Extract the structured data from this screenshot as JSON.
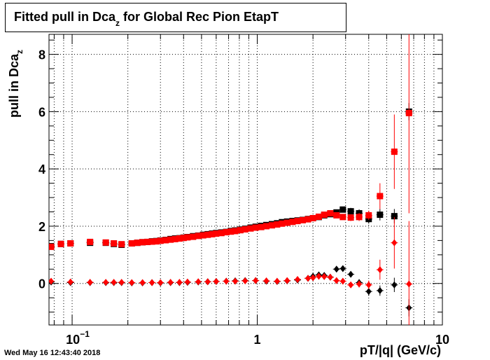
{
  "title": {
    "main": "Fitted pull in Dca",
    "sub": "z",
    "rest": " for Global Rec Pion EtapT"
  },
  "ylabel": {
    "main": "pull in Dca",
    "sub": "z"
  },
  "xlabel": "pT/|q| (GeV/c)",
  "timestamp": "Wed May 16 12:43:40 2018",
  "chart_data": {
    "type": "scatter",
    "xscale": "log",
    "xlim": [
      0.075,
      10
    ],
    "ylim": [
      -1.45,
      8.7
    ],
    "grid": true,
    "x_tick_labels": [
      {
        "value": 0.1,
        "base": "10",
        "exp": "−1"
      },
      {
        "value": 1,
        "base": "1",
        "exp": ""
      },
      {
        "value": 10,
        "base": "10",
        "exp": ""
      }
    ],
    "y_ticks": [
      0,
      2,
      4,
      6,
      8
    ],
    "series": [
      {
        "marker": "square",
        "color": "#000000",
        "points": [
          [
            0.077,
            1.3
          ],
          [
            0.087,
            1.38
          ],
          [
            0.098,
            1.4
          ],
          [
            0.125,
            1.42
          ],
          [
            0.152,
            1.42
          ],
          [
            0.168,
            1.38
          ],
          [
            0.185,
            1.35
          ],
          [
            0.21,
            1.4
          ],
          [
            0.225,
            1.42
          ],
          [
            0.24,
            1.44
          ],
          [
            0.255,
            1.45
          ],
          [
            0.27,
            1.47
          ],
          [
            0.285,
            1.48
          ],
          [
            0.3,
            1.5
          ],
          [
            0.32,
            1.52
          ],
          [
            0.34,
            1.55
          ],
          [
            0.36,
            1.57
          ],
          [
            0.38,
            1.58
          ],
          [
            0.4,
            1.6
          ],
          [
            0.42,
            1.62
          ],
          [
            0.45,
            1.65
          ],
          [
            0.48,
            1.67
          ],
          [
            0.51,
            1.7
          ],
          [
            0.54,
            1.72
          ],
          [
            0.57,
            1.74
          ],
          [
            0.6,
            1.76
          ],
          [
            0.64,
            1.78
          ],
          [
            0.68,
            1.8
          ],
          [
            0.72,
            1.83
          ],
          [
            0.76,
            1.85
          ],
          [
            0.81,
            1.88
          ],
          [
            0.86,
            1.91
          ],
          [
            0.92,
            1.95
          ],
          [
            0.98,
            1.98
          ],
          [
            1.05,
            2.01
          ],
          [
            1.12,
            2.04
          ],
          [
            1.2,
            2.07
          ],
          [
            1.28,
            2.1
          ],
          [
            1.36,
            2.14
          ],
          [
            1.45,
            2.16
          ],
          [
            1.55,
            2.18
          ],
          [
            1.65,
            2.2
          ],
          [
            1.76,
            2.22
          ],
          [
            1.88,
            2.25
          ],
          [
            2.0,
            2.28
          ],
          [
            2.15,
            2.32
          ],
          [
            2.3,
            2.38
          ],
          [
            2.48,
            2.42
          ],
          [
            2.68,
            2.48
          ],
          [
            2.9,
            2.58
          ],
          [
            3.2,
            2.52
          ],
          [
            3.55,
            2.45
          ],
          [
            4.0,
            2.25
          ],
          [
            4.6,
            2.4
          ],
          [
            5.5,
            2.35
          ],
          [
            6.6,
            6.0
          ]
        ],
        "yerr": [
          0.05,
          0.04,
          0.04,
          0.04,
          0.04,
          0.04,
          0.04,
          0.03,
          0.03,
          0.03,
          0.03,
          0.03,
          0.03,
          0.03,
          0.03,
          0.03,
          0.03,
          0.03,
          0.03,
          0.03,
          0.03,
          0.03,
          0.03,
          0.03,
          0.03,
          0.03,
          0.03,
          0.03,
          0.03,
          0.03,
          0.03,
          0.03,
          0.03,
          0.03,
          0.03,
          0.03,
          0.03,
          0.03,
          0.03,
          0.03,
          0.03,
          0.03,
          0.03,
          0.03,
          0.04,
          0.05,
          0.06,
          0.07,
          0.08,
          0.1,
          0.12,
          0.14,
          0.16,
          0.2,
          0.25,
          0.3
        ]
      },
      {
        "marker": "square",
        "color": "#ff0000",
        "points": [
          [
            0.077,
            1.28
          ],
          [
            0.087,
            1.38
          ],
          [
            0.098,
            1.4
          ],
          [
            0.125,
            1.45
          ],
          [
            0.152,
            1.43
          ],
          [
            0.168,
            1.4
          ],
          [
            0.185,
            1.37
          ],
          [
            0.21,
            1.4
          ],
          [
            0.225,
            1.42
          ],
          [
            0.24,
            1.44
          ],
          [
            0.255,
            1.45
          ],
          [
            0.27,
            1.46
          ],
          [
            0.285,
            1.47
          ],
          [
            0.3,
            1.49
          ],
          [
            0.32,
            1.51
          ],
          [
            0.34,
            1.53
          ],
          [
            0.36,
            1.55
          ],
          [
            0.38,
            1.57
          ],
          [
            0.4,
            1.59
          ],
          [
            0.42,
            1.61
          ],
          [
            0.45,
            1.63
          ],
          [
            0.48,
            1.66
          ],
          [
            0.51,
            1.68
          ],
          [
            0.54,
            1.7
          ],
          [
            0.57,
            1.72
          ],
          [
            0.6,
            1.74
          ],
          [
            0.64,
            1.76
          ],
          [
            0.68,
            1.79
          ],
          [
            0.72,
            1.81
          ],
          [
            0.76,
            1.83
          ],
          [
            0.81,
            1.86
          ],
          [
            0.86,
            1.89
          ],
          [
            0.92,
            1.92
          ],
          [
            0.98,
            1.95
          ],
          [
            1.05,
            1.97
          ],
          [
            1.12,
            2.0
          ],
          [
            1.2,
            2.03
          ],
          [
            1.28,
            2.06
          ],
          [
            1.36,
            2.09
          ],
          [
            1.45,
            2.12
          ],
          [
            1.55,
            2.15
          ],
          [
            1.65,
            2.18
          ],
          [
            1.76,
            2.21
          ],
          [
            1.88,
            2.24
          ],
          [
            2.0,
            2.28
          ],
          [
            2.15,
            2.33
          ],
          [
            2.3,
            2.4
          ],
          [
            2.48,
            2.45
          ],
          [
            2.68,
            2.38
          ],
          [
            2.9,
            2.32
          ],
          [
            3.2,
            2.3
          ],
          [
            3.55,
            2.32
          ],
          [
            4.0,
            2.38
          ],
          [
            4.6,
            3.05
          ],
          [
            5.5,
            4.6
          ],
          [
            6.6,
            5.95
          ]
        ],
        "yerr": [
          0.05,
          0.04,
          0.04,
          0.04,
          0.04,
          0.04,
          0.04,
          0.03,
          0.03,
          0.03,
          0.03,
          0.03,
          0.03,
          0.03,
          0.03,
          0.03,
          0.03,
          0.03,
          0.03,
          0.03,
          0.03,
          0.03,
          0.03,
          0.03,
          0.03,
          0.03,
          0.03,
          0.03,
          0.03,
          0.03,
          0.03,
          0.03,
          0.03,
          0.03,
          0.03,
          0.03,
          0.03,
          0.03,
          0.03,
          0.03,
          0.03,
          0.03,
          0.03,
          0.03,
          0.04,
          0.05,
          0.06,
          0.07,
          0.08,
          0.1,
          0.12,
          0.14,
          0.16,
          0.45,
          1.3,
          3.5
        ]
      },
      {
        "marker": "diamond",
        "color": "#000000",
        "points": [
          [
            0.077,
            0.05
          ],
          [
            0.098,
            0.03
          ],
          [
            0.125,
            0.03
          ],
          [
            0.152,
            0.03
          ],
          [
            0.168,
            0.03
          ],
          [
            0.185,
            0.03
          ],
          [
            0.21,
            0.02
          ],
          [
            0.24,
            0.02
          ],
          [
            0.27,
            0.03
          ],
          [
            0.3,
            0.02
          ],
          [
            0.34,
            0.03
          ],
          [
            0.38,
            0.03
          ],
          [
            0.42,
            0.04
          ],
          [
            0.48,
            0.05
          ],
          [
            0.54,
            0.06
          ],
          [
            0.6,
            0.07
          ],
          [
            0.68,
            0.08
          ],
          [
            0.76,
            0.09
          ],
          [
            0.86,
            0.1
          ],
          [
            0.98,
            0.1
          ],
          [
            1.12,
            0.08
          ],
          [
            1.28,
            0.07
          ],
          [
            1.45,
            0.09
          ],
          [
            1.65,
            0.12
          ],
          [
            1.88,
            0.18
          ],
          [
            2.0,
            0.25
          ],
          [
            2.15,
            0.3
          ],
          [
            2.3,
            0.28
          ],
          [
            2.48,
            0.22
          ],
          [
            2.68,
            0.5
          ],
          [
            2.9,
            0.52
          ],
          [
            3.2,
            0.32
          ],
          [
            3.55,
            0.03
          ],
          [
            4.0,
            -0.28
          ],
          [
            4.6,
            -0.25
          ],
          [
            5.5,
            -0.05
          ],
          [
            6.6,
            -0.85
          ]
        ],
        "yerr": [
          0.04,
          0.03,
          0.03,
          0.03,
          0.03,
          0.03,
          0.02,
          0.02,
          0.02,
          0.02,
          0.02,
          0.02,
          0.02,
          0.02,
          0.02,
          0.02,
          0.02,
          0.02,
          0.02,
          0.02,
          0.02,
          0.02,
          0.03,
          0.03,
          0.04,
          0.04,
          0.05,
          0.05,
          0.06,
          0.07,
          0.08,
          0.1,
          0.12,
          0.15,
          0.18,
          0.25,
          0.3
        ]
      },
      {
        "marker": "diamond",
        "color": "#ff0000",
        "points": [
          [
            0.077,
            0.08
          ],
          [
            0.098,
            0.05
          ],
          [
            0.125,
            0.04
          ],
          [
            0.152,
            0.04
          ],
          [
            0.168,
            0.04
          ],
          [
            0.185,
            0.04
          ],
          [
            0.21,
            0.03
          ],
          [
            0.24,
            0.03
          ],
          [
            0.27,
            0.03
          ],
          [
            0.3,
            0.03
          ],
          [
            0.34,
            0.04
          ],
          [
            0.38,
            0.04
          ],
          [
            0.42,
            0.05
          ],
          [
            0.48,
            0.06
          ],
          [
            0.54,
            0.06
          ],
          [
            0.6,
            0.07
          ],
          [
            0.68,
            0.08
          ],
          [
            0.76,
            0.08
          ],
          [
            0.86,
            0.09
          ],
          [
            0.98,
            0.1
          ],
          [
            1.12,
            0.09
          ],
          [
            1.28,
            0.08
          ],
          [
            1.45,
            0.1
          ],
          [
            1.65,
            0.14
          ],
          [
            1.88,
            0.18
          ],
          [
            2.0,
            0.2
          ],
          [
            2.15,
            0.25
          ],
          [
            2.3,
            0.24
          ],
          [
            2.48,
            0.22
          ],
          [
            2.68,
            0.1
          ],
          [
            2.9,
            0.08
          ],
          [
            3.2,
            -0.05
          ],
          [
            3.55,
            -0.02
          ],
          [
            4.0,
            -0.05
          ],
          [
            4.6,
            0.48
          ],
          [
            5.5,
            1.42
          ],
          [
            6.6,
            -0.02
          ]
        ],
        "yerr": [
          0.04,
          0.03,
          0.03,
          0.03,
          0.03,
          0.03,
          0.02,
          0.02,
          0.02,
          0.02,
          0.02,
          0.02,
          0.02,
          0.02,
          0.02,
          0.02,
          0.02,
          0.02,
          0.02,
          0.02,
          0.02,
          0.02,
          0.03,
          0.03,
          0.04,
          0.04,
          0.05,
          0.05,
          0.06,
          0.07,
          0.08,
          0.1,
          0.12,
          0.15,
          0.35,
          0.9,
          2.2
        ]
      }
    ]
  }
}
